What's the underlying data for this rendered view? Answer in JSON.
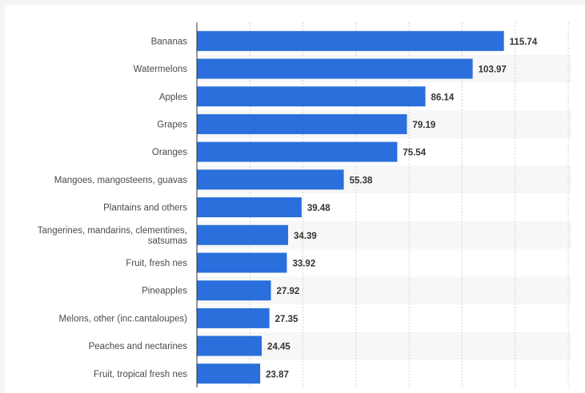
{
  "colors": {
    "bar": "#2a6fdb",
    "grid": "#d4d4d4",
    "band": "#f7f7f7",
    "label": "#4a4a4a",
    "value": "#333333"
  },
  "chart_data": {
    "type": "bar",
    "orientation": "horizontal",
    "categories": [
      "Bananas",
      "Watermelons",
      "Apples",
      "Grapes",
      "Oranges",
      "Mangoes, mangosteens, guavas",
      "Plantains and others",
      [
        "Tangerines, mandarins, clementines,",
        "satsumas"
      ],
      "Fruit, fresh nes",
      "Pineapples",
      "Melons, other (inc.cantaloupes)",
      "Peaches and nectarines",
      "Fruit, tropical fresh nes"
    ],
    "values": [
      115.74,
      103.97,
      86.14,
      79.19,
      75.54,
      55.38,
      39.48,
      34.39,
      33.92,
      27.92,
      27.35,
      24.45,
      23.87
    ],
    "value_labels": [
      "115.74",
      "103.97",
      "86.14",
      "79.19",
      "75.54",
      "55.38",
      "39.48",
      "34.39",
      "33.92",
      "27.92",
      "27.35",
      "24.45",
      "23.87"
    ],
    "xlim": [
      0,
      140
    ],
    "grid": true,
    "legend": "none",
    "title": "",
    "xlabel": "",
    "ylabel": ""
  }
}
